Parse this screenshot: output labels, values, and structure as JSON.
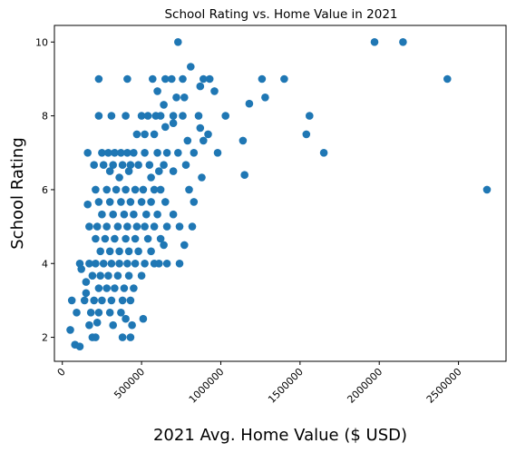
{
  "chart_data": {
    "type": "scatter",
    "title": "School Rating vs. Home Value in 2021",
    "xlabel": "2021 Avg. Home Value ($ USD)",
    "ylabel": "School Rating",
    "xlim": [
      -50000,
      2800000
    ],
    "ylim": [
      1.35,
      10.45
    ],
    "xticks": [
      0,
      500000,
      1000000,
      1500000,
      2000000,
      2500000
    ],
    "xtick_labels": [
      "0",
      "500000",
      "1000000",
      "1500000",
      "2000000",
      "2500000"
    ],
    "yticks": [
      2,
      4,
      6,
      8,
      10
    ],
    "ytick_labels": [
      "2",
      "4",
      "6",
      "8",
      "10"
    ],
    "grid": false,
    "marker_color": "#1f77b4",
    "points": [
      [
        730000,
        10
      ],
      [
        1970000,
        10
      ],
      [
        2150000,
        10
      ],
      [
        230000,
        9
      ],
      [
        410000,
        9
      ],
      [
        570000,
        9
      ],
      [
        650000,
        9
      ],
      [
        690000,
        9
      ],
      [
        760000,
        9
      ],
      [
        890000,
        9
      ],
      [
        930000,
        9
      ],
      [
        1260000,
        9
      ],
      [
        1400000,
        9
      ],
      [
        2430000,
        9
      ],
      [
        810000,
        9.33
      ],
      [
        870000,
        8.8
      ],
      [
        960000,
        8.67
      ],
      [
        1280000,
        8.5
      ],
      [
        720000,
        8.5
      ],
      [
        770000,
        8.5
      ],
      [
        600000,
        8.67
      ],
      [
        640000,
        8.3
      ],
      [
        1180000,
        8.33
      ],
      [
        230000,
        8
      ],
      [
        310000,
        8
      ],
      [
        400000,
        8
      ],
      [
        500000,
        8
      ],
      [
        540000,
        8
      ],
      [
        590000,
        8
      ],
      [
        620000,
        8
      ],
      [
        700000,
        8
      ],
      [
        760000,
        8
      ],
      [
        860000,
        8
      ],
      [
        1030000,
        8
      ],
      [
        1560000,
        8
      ],
      [
        700000,
        7.8
      ],
      [
        650000,
        7.7
      ],
      [
        580000,
        7.5
      ],
      [
        520000,
        7.5
      ],
      [
        470000,
        7.5
      ],
      [
        920000,
        7.5
      ],
      [
        1540000,
        7.5
      ],
      [
        1140000,
        7.33
      ],
      [
        790000,
        7.33
      ],
      [
        890000,
        7.33
      ],
      [
        870000,
        7.67
      ],
      [
        160000,
        7
      ],
      [
        250000,
        7
      ],
      [
        290000,
        7
      ],
      [
        330000,
        7
      ],
      [
        370000,
        7
      ],
      [
        410000,
        7
      ],
      [
        450000,
        7
      ],
      [
        520000,
        7
      ],
      [
        600000,
        7
      ],
      [
        660000,
        7
      ],
      [
        730000,
        7
      ],
      [
        830000,
        7
      ],
      [
        980000,
        7
      ],
      [
        1650000,
        7
      ],
      [
        200000,
        6.67
      ],
      [
        260000,
        6.67
      ],
      [
        320000,
        6.67
      ],
      [
        380000,
        6.67
      ],
      [
        430000,
        6.67
      ],
      [
        480000,
        6.67
      ],
      [
        550000,
        6.67
      ],
      [
        640000,
        6.67
      ],
      [
        780000,
        6.67
      ],
      [
        1150000,
        6.4
      ],
      [
        880000,
        6.33
      ],
      [
        560000,
        6.33
      ],
      [
        360000,
        6.33
      ],
      [
        300000,
        6.5
      ],
      [
        420000,
        6.5
      ],
      [
        610000,
        6.5
      ],
      [
        700000,
        6.5
      ],
      [
        210000,
        6
      ],
      [
        280000,
        6
      ],
      [
        340000,
        6
      ],
      [
        400000,
        6
      ],
      [
        460000,
        6
      ],
      [
        510000,
        6
      ],
      [
        580000,
        6
      ],
      [
        620000,
        6
      ],
      [
        800000,
        6
      ],
      [
        2680000,
        6
      ],
      [
        230000,
        5.67
      ],
      [
        300000,
        5.67
      ],
      [
        370000,
        5.67
      ],
      [
        430000,
        5.67
      ],
      [
        500000,
        5.67
      ],
      [
        560000,
        5.67
      ],
      [
        650000,
        5.67
      ],
      [
        830000,
        5.67
      ],
      [
        160000,
        5.6
      ],
      [
        250000,
        5.33
      ],
      [
        320000,
        5.33
      ],
      [
        390000,
        5.33
      ],
      [
        450000,
        5.33
      ],
      [
        530000,
        5.33
      ],
      [
        600000,
        5.33
      ],
      [
        700000,
        5.33
      ],
      [
        170000,
        5
      ],
      [
        220000,
        5
      ],
      [
        280000,
        5
      ],
      [
        350000,
        5
      ],
      [
        410000,
        5
      ],
      [
        470000,
        5
      ],
      [
        520000,
        5
      ],
      [
        580000,
        5
      ],
      [
        660000,
        5
      ],
      [
        740000,
        5
      ],
      [
        820000,
        5
      ],
      [
        210000,
        4.67
      ],
      [
        270000,
        4.67
      ],
      [
        330000,
        4.67
      ],
      [
        400000,
        4.67
      ],
      [
        460000,
        4.67
      ],
      [
        540000,
        4.67
      ],
      [
        620000,
        4.67
      ],
      [
        240000,
        4.33
      ],
      [
        300000,
        4.33
      ],
      [
        360000,
        4.33
      ],
      [
        420000,
        4.33
      ],
      [
        480000,
        4.33
      ],
      [
        560000,
        4.33
      ],
      [
        640000,
        4.5
      ],
      [
        770000,
        4.5
      ],
      [
        110000,
        4
      ],
      [
        170000,
        4
      ],
      [
        210000,
        4
      ],
      [
        260000,
        4
      ],
      [
        310000,
        4
      ],
      [
        360000,
        4
      ],
      [
        410000,
        4
      ],
      [
        460000,
        4
      ],
      [
        520000,
        4
      ],
      [
        580000,
        4
      ],
      [
        610000,
        4
      ],
      [
        660000,
        4
      ],
      [
        740000,
        4
      ],
      [
        120000,
        3.85
      ],
      [
        190000,
        3.67
      ],
      [
        240000,
        3.67
      ],
      [
        290000,
        3.67
      ],
      [
        350000,
        3.67
      ],
      [
        420000,
        3.67
      ],
      [
        500000,
        3.67
      ],
      [
        150000,
        3.5
      ],
      [
        230000,
        3.33
      ],
      [
        280000,
        3.33
      ],
      [
        330000,
        3.33
      ],
      [
        390000,
        3.33
      ],
      [
        450000,
        3.33
      ],
      [
        150000,
        3.2
      ],
      [
        60000,
        3
      ],
      [
        140000,
        3
      ],
      [
        200000,
        3
      ],
      [
        250000,
        3
      ],
      [
        310000,
        3
      ],
      [
        380000,
        3
      ],
      [
        430000,
        3
      ],
      [
        90000,
        2.67
      ],
      [
        180000,
        2.67
      ],
      [
        230000,
        2.67
      ],
      [
        300000,
        2.67
      ],
      [
        370000,
        2.67
      ],
      [
        400000,
        2.5
      ],
      [
        510000,
        2.5
      ],
      [
        170000,
        2.33
      ],
      [
        220000,
        2.4
      ],
      [
        320000,
        2.33
      ],
      [
        440000,
        2.33
      ],
      [
        50000,
        2.2
      ],
      [
        190000,
        2
      ],
      [
        210000,
        2
      ],
      [
        380000,
        2
      ],
      [
        430000,
        2
      ],
      [
        80000,
        1.8
      ],
      [
        110000,
        1.75
      ]
    ]
  }
}
